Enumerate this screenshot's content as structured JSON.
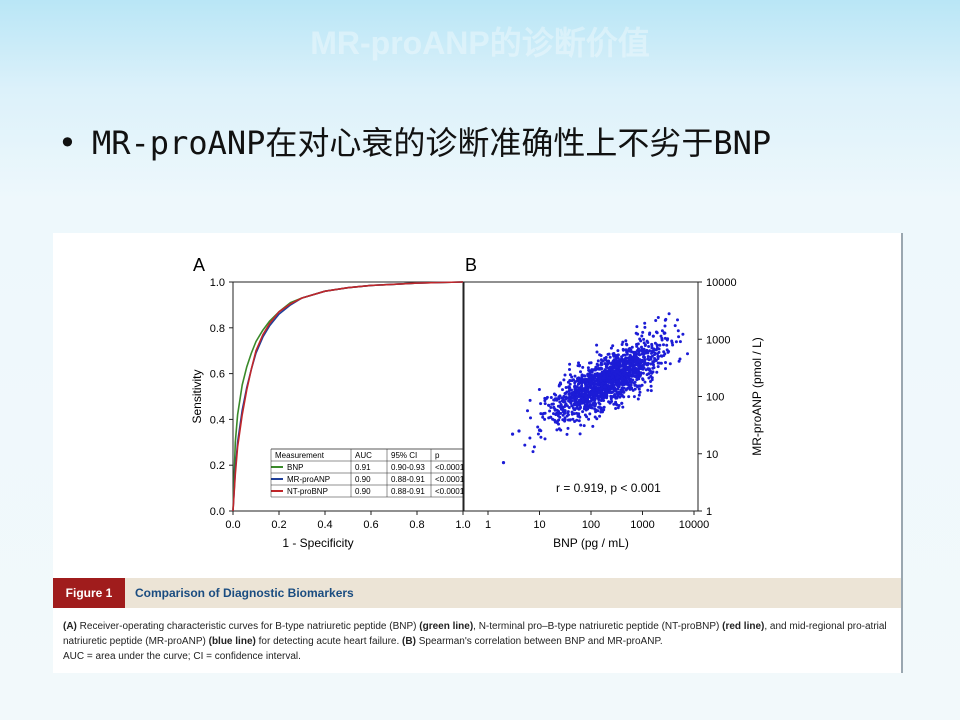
{
  "slide": {
    "title": "MR-proANP的诊断价值",
    "bullet": "MR-proANP在对心衰的诊断准确性上不劣于BNP"
  },
  "figure": {
    "label": "Figure 1",
    "title": "Comparison of Diagnostic Biomarkers",
    "caption": {
      "a_tag": "(A)",
      "a_text_1": " Receiver-operating characteristic curves for B-type natriuretic peptide (BNP) ",
      "green": "(green line)",
      "a_text_2": ", N-terminal pro–B-type natriuretic peptide (NT-proBNP) ",
      "red": "(red line)",
      "a_text_3": ", and mid-regional pro-atrial natriuretic peptide (MR-proANP) ",
      "blue": "(blue line)",
      "a_text_4": " for detecting acute heart failure. ",
      "b_tag": "(B)",
      "b_text": " Spearman's correlation between BNP and MR-proANP.",
      "abbrev": "AUC = area under the curve; CI = confidence interval."
    }
  },
  "chart_data": [
    {
      "type": "line",
      "panel_label": "A",
      "xlabel": "1 - Specificity",
      "ylabel": "Sensitivity",
      "xlim": [
        0,
        1
      ],
      "ylim": [
        0,
        1
      ],
      "xticks": [
        "0.0",
        "0.2",
        "0.4",
        "0.6",
        "0.8",
        "1.0"
      ],
      "yticks": [
        "0.0",
        "0.2",
        "0.4",
        "0.6",
        "0.8",
        "1.0"
      ],
      "grid": false,
      "legend_placement": "bottom-right",
      "legend_headers": [
        "Measurement",
        "AUC",
        "95% CI",
        "p"
      ],
      "series": [
        {
          "name": "BNP",
          "color": "#3a8a2a",
          "auc": "0.91",
          "ci": "0.90-0.93",
          "p": "<0.0001",
          "x": [
            0,
            0.01,
            0.02,
            0.04,
            0.06,
            0.08,
            0.1,
            0.13,
            0.16,
            0.2,
            0.25,
            0.3,
            0.4,
            0.5,
            0.6,
            0.7,
            0.8,
            0.9,
            1.0
          ],
          "y": [
            0,
            0.3,
            0.42,
            0.55,
            0.63,
            0.69,
            0.74,
            0.79,
            0.83,
            0.87,
            0.91,
            0.93,
            0.96,
            0.975,
            0.985,
            0.99,
            0.995,
            0.998,
            1.0
          ]
        },
        {
          "name": "MR-proANP",
          "color": "#1f3f9a",
          "auc": "0.90",
          "ci": "0.88-0.91",
          "p": "<0.0001",
          "x": [
            0,
            0.01,
            0.02,
            0.04,
            0.06,
            0.08,
            0.1,
            0.13,
            0.16,
            0.2,
            0.25,
            0.3,
            0.4,
            0.5,
            0.6,
            0.7,
            0.8,
            0.9,
            1.0
          ],
          "y": [
            0,
            0.18,
            0.3,
            0.44,
            0.54,
            0.62,
            0.69,
            0.76,
            0.81,
            0.86,
            0.9,
            0.93,
            0.96,
            0.975,
            0.985,
            0.99,
            0.995,
            0.998,
            1.0
          ]
        },
        {
          "name": "NT-proBNP",
          "color": "#c0262a",
          "auc": "0.90",
          "ci": "0.88-0.91",
          "p": "<0.0001",
          "x": [
            0,
            0.01,
            0.02,
            0.04,
            0.06,
            0.08,
            0.1,
            0.13,
            0.16,
            0.2,
            0.25,
            0.3,
            0.4,
            0.5,
            0.6,
            0.7,
            0.8,
            0.9,
            1.0
          ],
          "y": [
            0,
            0.16,
            0.28,
            0.42,
            0.53,
            0.62,
            0.7,
            0.77,
            0.82,
            0.87,
            0.905,
            0.93,
            0.96,
            0.975,
            0.985,
            0.99,
            0.995,
            0.998,
            1.0
          ]
        }
      ]
    },
    {
      "type": "scatter",
      "panel_label": "B",
      "xlabel": "BNP (pg / mL)",
      "ylabel": "MR-proANP (pmol / L)",
      "x_scale": "log",
      "y_scale": "log",
      "xlim": [
        1,
        10000
      ],
      "ylim": [
        1,
        10000
      ],
      "xticks": [
        "1",
        "10",
        "100",
        "1000",
        "10000"
      ],
      "yticks": [
        "1",
        "10",
        "100",
        "1000",
        "10000"
      ],
      "y_axis_side": "right",
      "point_color": "#1c1cd6",
      "annotation": "r = 0.919,  p < 0.001",
      "trend": {
        "x_range": [
          5,
          8000
        ],
        "y_at_x10": 45,
        "y_at_x1000": 400,
        "log_spread": 0.22,
        "n_points": 1600
      },
      "outliers": [
        {
          "x": 2,
          "y": 7
        },
        {
          "x": 3,
          "y": 22
        },
        {
          "x": 4,
          "y": 25
        }
      ]
    }
  ]
}
